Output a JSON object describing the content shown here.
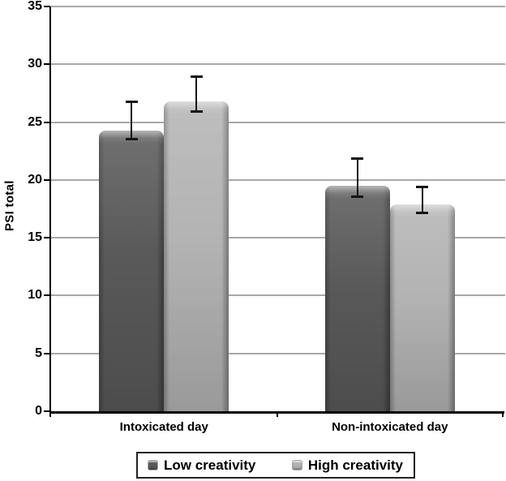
{
  "chart_data": {
    "type": "bar",
    "title": "",
    "xlabel": "",
    "ylabel": "PSI total",
    "ylim": [
      0,
      35
    ],
    "yticks": [
      0,
      5,
      10,
      15,
      20,
      25,
      30,
      35
    ],
    "grid": "horizontal",
    "legend_position": "bottom",
    "categories": [
      "Intoxicated day",
      "Non-intoxicated day"
    ],
    "series": [
      {
        "name": "Low creativity",
        "color": "#595959",
        "values": [
          24.3,
          19.5
        ],
        "error_low": [
          23.5,
          18.5
        ],
        "error_high": [
          26.8,
          21.9
        ]
      },
      {
        "name": "High creativity",
        "color": "#b3b3b3",
        "values": [
          26.8,
          17.9
        ],
        "error_low": [
          25.9,
          17.1
        ],
        "error_high": [
          29.0,
          19.4
        ]
      }
    ],
    "gridline_color": "#a8a8a8",
    "axis_color": "#000000",
    "error_bar_color": "#141414"
  }
}
